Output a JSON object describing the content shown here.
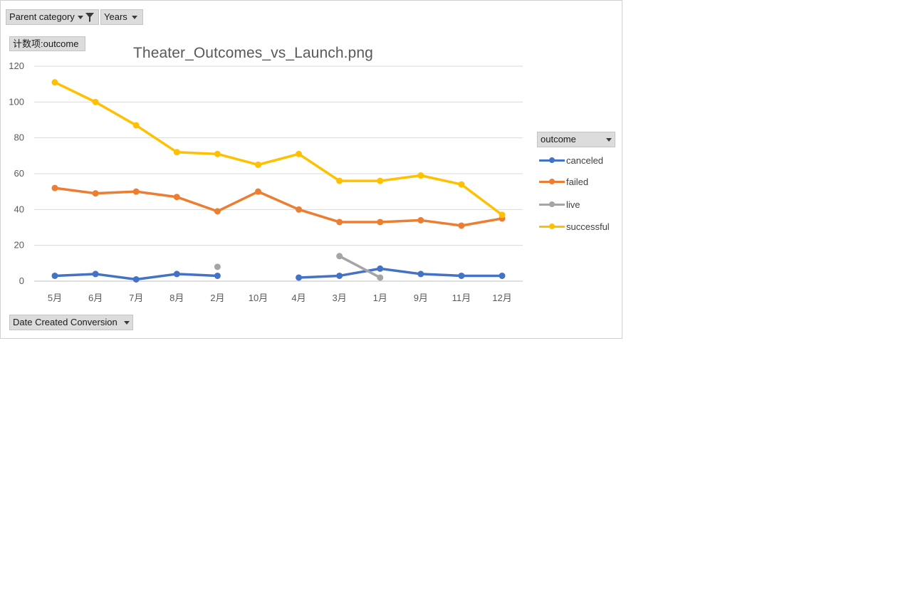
{
  "pivot_buttons": {
    "parent_category": "Parent category",
    "years": "Years",
    "values_field": "计数项:outcome",
    "axis_field": "Date Created Conversion"
  },
  "chart_data": {
    "type": "line",
    "title": "Theater_Outcomes_vs_Launch.png",
    "categories": [
      "5月",
      "6月",
      "7月",
      "8月",
      "2月",
      "10月",
      "4月",
      "3月",
      "1月",
      "9月",
      "11月",
      "12月"
    ],
    "ylim": [
      0,
      120
    ],
    "yticks": [
      0,
      20,
      40,
      60,
      80,
      100,
      120
    ],
    "grid": true,
    "legend_title": "outcome",
    "legend_position": "right",
    "series": [
      {
        "name": "canceled",
        "color": "#4472C4",
        "values": [
          3,
          4,
          1,
          4,
          3,
          null,
          2,
          3,
          7,
          4,
          3,
          3
        ]
      },
      {
        "name": "failed",
        "color": "#ED7D31",
        "values": [
          52,
          49,
          50,
          47,
          39,
          50,
          40,
          33,
          33,
          34,
          31,
          35
        ]
      },
      {
        "name": "live",
        "color": "#A5A5A5",
        "values": [
          null,
          null,
          null,
          null,
          8,
          null,
          null,
          14,
          2,
          null,
          null,
          null
        ]
      },
      {
        "name": "successful",
        "color": "#FFC000",
        "values": [
          111,
          100,
          87,
          72,
          71,
          65,
          71,
          56,
          56,
          59,
          54,
          37
        ]
      }
    ]
  }
}
